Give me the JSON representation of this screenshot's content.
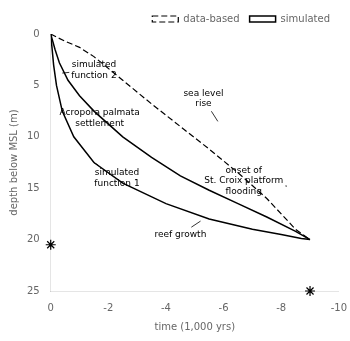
{
  "chart_data": {
    "type": "line",
    "xlabel": "time (1,000 yrs)",
    "ylabel": "depth below MSL (m)",
    "xlim": [
      0,
      -10
    ],
    "ylim": [
      25,
      0
    ],
    "xticks": [
      0,
      -2,
      -4,
      -6,
      -8,
      -10
    ],
    "yticks": [
      0,
      5,
      10,
      15,
      20,
      25
    ],
    "grid": false,
    "legend": "upper right",
    "series": [
      {
        "name": "data-based",
        "color": "#000000",
        "line_style": "dashed",
        "x": [
          0,
          -0.2,
          -0.5,
          -1.0,
          -1.5,
          -2.5,
          -3.5,
          -4.5,
          -5.5,
          -6.5,
          -7.5,
          -8.5,
          -9.0
        ],
        "values": [
          0,
          0.3,
          0.7,
          1.3,
          2.2,
          4.5,
          6.8,
          9.0,
          11.2,
          13.5,
          16.0,
          19.0,
          20.0
        ]
      },
      {
        "name": "simulated",
        "color": "#000000",
        "line_style": "solid",
        "x": [
          0,
          -0.05,
          -0.15,
          -0.3,
          -0.6,
          -1.0,
          -1.5,
          -2.5,
          -3.5,
          -4.5,
          -5.5,
          -6.5,
          -7.5,
          -8.5,
          -9.0
        ],
        "values": [
          0,
          0.5,
          1.5,
          2.8,
          4.5,
          6.0,
          7.5,
          10.0,
          12.0,
          13.8,
          15.2,
          16.5,
          17.8,
          19.2,
          20.0
        ]
      },
      {
        "color": "#000000",
        "line_style": "solid",
        "x": [
          0,
          -0.05,
          -0.1,
          -0.2,
          -0.4,
          -0.8,
          -1.5,
          -2.5,
          -4.0,
          -5.5,
          -7.0,
          -8.0,
          -8.7,
          -9.0
        ],
        "values": [
          0,
          1.5,
          3.0,
          5.0,
          7.5,
          10.0,
          12.5,
          14.5,
          16.5,
          18.0,
          19.0,
          19.5,
          19.9,
          20.0
        ]
      },
      {
        "type": "scatter",
        "marker": "star",
        "color": "#000000",
        "x": [
          0.0,
          -9.0
        ],
        "values": [
          20.5,
          25.0
        ]
      }
    ],
    "annotations": [
      {
        "text": "simulated\nfunction 2",
        "xy": [
          -0.4,
          3.8
        ],
        "xytext": [
          -1.5,
          3.5
        ]
      },
      {
        "text": "Acropora palmata\nsettlement",
        "xy": [
          -0.5,
          7.2
        ],
        "xytext": [
          -1.7,
          8.2
        ]
      },
      {
        "text": "simulated\nfunction 1",
        "xy": [
          -1.5,
          12.5
        ],
        "xytext": [
          -2.3,
          14.0
        ]
      },
      {
        "text": "sea level\nrise",
        "xy": [
          -5.8,
          8.5
        ],
        "xytext": [
          -5.3,
          6.3
        ]
      },
      {
        "text": "onset of\nSt. Croix platform\nflooding",
        "xy": [
          -8.2,
          14.8
        ],
        "xytext": [
          -6.7,
          14.3
        ]
      },
      {
        "text": "reef growth",
        "xy": [
          -5.2,
          18.2
        ],
        "xytext": [
          -4.5,
          19.5
        ]
      }
    ]
  }
}
